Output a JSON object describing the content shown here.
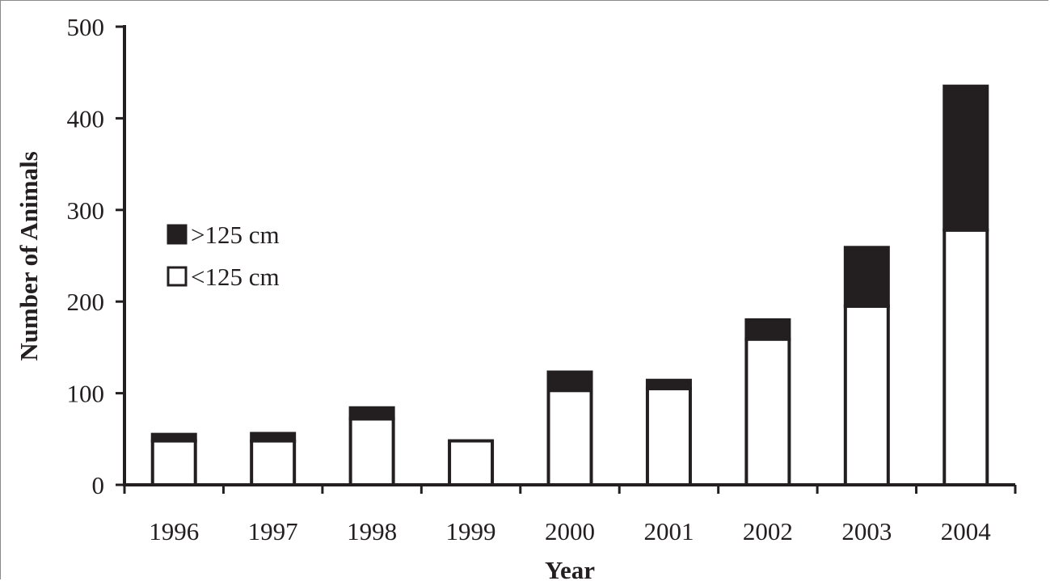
{
  "chart_data": {
    "type": "bar",
    "stacked": true,
    "categories": [
      "1996",
      "1997",
      "1998",
      "1999",
      "2000",
      "2001",
      "2002",
      "2003",
      "2004"
    ],
    "series": [
      {
        "name": "<125 cm",
        "values": [
          48,
          48,
          72,
          48,
          103,
          105,
          159,
          195,
          278
        ],
        "color": "#ffffff"
      },
      {
        "name": ">125 cm",
        "values": [
          7,
          8,
          12,
          0,
          20,
          9,
          21,
          64,
          157
        ],
        "color": "#231f20"
      }
    ],
    "xlabel": "Year",
    "ylabel": "Number of Animals",
    "ylim": [
      0,
      500
    ],
    "yticks": [
      0,
      100,
      200,
      300,
      400,
      500
    ],
    "grid": false,
    "legend_position": "left"
  }
}
